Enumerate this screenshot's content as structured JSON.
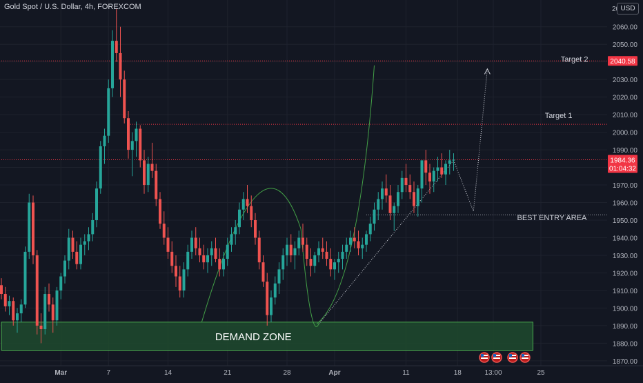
{
  "header": {
    "title": "Gold Spot / U.S. Dollar, 4h, FOREXCOM",
    "currency": "USD"
  },
  "colors": {
    "background": "#131722",
    "up": "#26a69a",
    "down": "#ef5350",
    "grid": "#1e222d",
    "axis_text": "#b2b5be",
    "zone_fill": "#1f4a2e",
    "zone_border": "#4caf50",
    "curve": "#43a047",
    "level_line": "#f23645",
    "price_label_bg": "#f23645"
  },
  "chart_data": {
    "type": "candlestick",
    "instrument": "Gold Spot / U.S. Dollar",
    "timeframe": "4h",
    "source": "FOREXCOM",
    "ylim": [
      1868,
      2070
    ],
    "y_ticks": [
      1870,
      1880,
      1890,
      1900,
      1910,
      1920,
      1930,
      1940,
      1950,
      1960,
      1970,
      1980,
      1990,
      2000,
      2010,
      2020,
      2030,
      2040,
      2050,
      2060
    ],
    "x_ticks": [
      {
        "label": "Mar",
        "bar": 15
      },
      {
        "label": "7",
        "bar": 27
      },
      {
        "label": "14",
        "bar": 42
      },
      {
        "label": "21",
        "bar": 57
      },
      {
        "label": "28",
        "bar": 72
      },
      {
        "label": "Apr",
        "bar": 84
      },
      {
        "label": "11",
        "bar": 102
      },
      {
        "label": "18",
        "bar": 115
      },
      {
        "label": "13:00",
        "bar": 124
      },
      {
        "label": "25",
        "bar": 136
      }
    ],
    "bar_count": 153,
    "candles_ohlc": [
      [
        1913,
        1917,
        1905,
        1908
      ],
      [
        1908,
        1912,
        1898,
        1901
      ],
      [
        1901,
        1907,
        1896,
        1904
      ],
      [
        1904,
        1906,
        1890,
        1893
      ],
      [
        1893,
        1900,
        1886,
        1897
      ],
      [
        1897,
        1905,
        1892,
        1902
      ],
      [
        1902,
        1935,
        1900,
        1932
      ],
      [
        1932,
        1965,
        1928,
        1960
      ],
      [
        1960,
        1964,
        1925,
        1930
      ],
      [
        1930,
        1933,
        1885,
        1890
      ],
      [
        1890,
        1897,
        1880,
        1888
      ],
      [
        1888,
        1912,
        1885,
        1908
      ],
      [
        1908,
        1914,
        1898,
        1902
      ],
      [
        1902,
        1906,
        1886,
        1893
      ],
      [
        1893,
        1912,
        1890,
        1910
      ],
      [
        1910,
        1920,
        1905,
        1918
      ],
      [
        1918,
        1930,
        1914,
        1927
      ],
      [
        1927,
        1945,
        1922,
        1940
      ],
      [
        1940,
        1944,
        1928,
        1932
      ],
      [
        1932,
        1938,
        1922,
        1925
      ],
      [
        1925,
        1940,
        1922,
        1936
      ],
      [
        1936,
        1942,
        1930,
        1938
      ],
      [
        1938,
        1946,
        1933,
        1942
      ],
      [
        1942,
        1954,
        1938,
        1950
      ],
      [
        1950,
        1972,
        1946,
        1968
      ],
      [
        1968,
        1995,
        1965,
        1992
      ],
      [
        1992,
        2002,
        1982,
        1998
      ],
      [
        1998,
        2030,
        1994,
        2025
      ],
      [
        2025,
        2058,
        2020,
        2052
      ],
      [
        2052,
        2070,
        2040,
        2045
      ],
      [
        2045,
        2060,
        2020,
        2030
      ],
      [
        2030,
        2035,
        2005,
        2008
      ],
      [
        2008,
        2012,
        1985,
        1990
      ],
      [
        1990,
        2000,
        1975,
        1995
      ],
      [
        1995,
        2006,
        1986,
        2002
      ],
      [
        2002,
        2004,
        1980,
        1984
      ],
      [
        1984,
        1990,
        1965,
        1970
      ],
      [
        1970,
        1986,
        1966,
        1982
      ],
      [
        1982,
        1994,
        1974,
        1978
      ],
      [
        1978,
        1982,
        1958,
        1962
      ],
      [
        1962,
        1966,
        1945,
        1948
      ],
      [
        1948,
        1955,
        1936,
        1940
      ],
      [
        1940,
        1946,
        1928,
        1932
      ],
      [
        1932,
        1938,
        1920,
        1924
      ],
      [
        1924,
        1930,
        1912,
        1918
      ],
      [
        1918,
        1924,
        1906,
        1910
      ],
      [
        1910,
        1926,
        1906,
        1922
      ],
      [
        1922,
        1936,
        1918,
        1932
      ],
      [
        1932,
        1944,
        1928,
        1940
      ],
      [
        1940,
        1946,
        1930,
        1934
      ],
      [
        1934,
        1940,
        1926,
        1930
      ],
      [
        1930,
        1936,
        1922,
        1926
      ],
      [
        1926,
        1934,
        1920,
        1930
      ],
      [
        1930,
        1938,
        1924,
        1934
      ],
      [
        1934,
        1940,
        1926,
        1928
      ],
      [
        1928,
        1934,
        1918,
        1922
      ],
      [
        1922,
        1932,
        1918,
        1928
      ],
      [
        1928,
        1940,
        1924,
        1936
      ],
      [
        1936,
        1946,
        1932,
        1942
      ],
      [
        1942,
        1950,
        1936,
        1946
      ],
      [
        1946,
        1960,
        1942,
        1956
      ],
      [
        1956,
        1966,
        1950,
        1962
      ],
      [
        1962,
        1970,
        1954,
        1958
      ],
      [
        1958,
        1964,
        1946,
        1950
      ],
      [
        1950,
        1954,
        1936,
        1940
      ],
      [
        1940,
        1944,
        1922,
        1926
      ],
      [
        1926,
        1930,
        1912,
        1915
      ],
      [
        1915,
        1920,
        1890,
        1896
      ],
      [
        1896,
        1910,
        1892,
        1906
      ],
      [
        1906,
        1918,
        1902,
        1914
      ],
      [
        1914,
        1926,
        1908,
        1922
      ],
      [
        1922,
        1934,
        1916,
        1930
      ],
      [
        1930,
        1940,
        1924,
        1936
      ],
      [
        1936,
        1942,
        1926,
        1930
      ],
      [
        1930,
        1938,
        1922,
        1934
      ],
      [
        1934,
        1944,
        1930,
        1940
      ],
      [
        1940,
        1948,
        1932,
        1936
      ],
      [
        1936,
        1940,
        1924,
        1928
      ],
      [
        1928,
        1934,
        1918,
        1924
      ],
      [
        1924,
        1932,
        1920,
        1930
      ],
      [
        1930,
        1938,
        1926,
        1934
      ],
      [
        1934,
        1940,
        1928,
        1932
      ],
      [
        1932,
        1938,
        1924,
        1928
      ],
      [
        1928,
        1934,
        1918,
        1922
      ],
      [
        1922,
        1928,
        1916,
        1926
      ],
      [
        1926,
        1932,
        1920,
        1928
      ],
      [
        1928,
        1936,
        1922,
        1932
      ],
      [
        1932,
        1940,
        1928,
        1936
      ],
      [
        1936,
        1944,
        1932,
        1940
      ],
      [
        1940,
        1946,
        1934,
        1938
      ],
      [
        1938,
        1944,
        1930,
        1934
      ],
      [
        1934,
        1940,
        1928,
        1936
      ],
      [
        1936,
        1944,
        1932,
        1942
      ],
      [
        1942,
        1952,
        1938,
        1948
      ],
      [
        1948,
        1960,
        1944,
        1956
      ],
      [
        1956,
        1966,
        1950,
        1962
      ],
      [
        1962,
        1972,
        1956,
        1968
      ],
      [
        1968,
        1976,
        1960,
        1964
      ],
      [
        1964,
        1970,
        1950,
        1954
      ],
      [
        1954,
        1960,
        1944,
        1958
      ],
      [
        1958,
        1970,
        1954,
        1966
      ],
      [
        1966,
        1978,
        1962,
        1974
      ],
      [
        1974,
        1982,
        1966,
        1970
      ],
      [
        1970,
        1976,
        1962,
        1966
      ],
      [
        1966,
        1972,
        1954,
        1958
      ],
      [
        1958,
        1970,
        1952,
        1968
      ],
      [
        1968,
        1984,
        1960,
        1984
      ],
      [
        1984,
        1990,
        1970,
        1977
      ],
      [
        1977,
        1982,
        1965,
        1972
      ],
      [
        1972,
        1980,
        1966,
        1978
      ],
      [
        1978,
        1986,
        1972,
        1980
      ],
      [
        1980,
        1988,
        1974,
        1976
      ],
      [
        1976,
        1984,
        1970,
        1982
      ],
      [
        1982,
        1990,
        1976,
        1984
      ],
      [
        1984,
        1988,
        1978,
        1984.36
      ]
    ],
    "levels": [
      {
        "name": "target-2-line",
        "value": 2040.58,
        "x_start_bar": 0,
        "style": "dotted"
      },
      {
        "name": "target-1-line",
        "value": 2004.5,
        "x_start_bar": 32,
        "style": "dotted"
      },
      {
        "name": "current-price-line",
        "value": 1984.36,
        "x_start_bar": 0,
        "style": "dotted"
      },
      {
        "name": "best-entry-line",
        "value": 1953,
        "x_start_bar": 92,
        "style": "dotted"
      }
    ],
    "demand_zone": {
      "label": "DEMAND ZONE",
      "top": 1892,
      "bottom": 1876,
      "x_start_bar": 0,
      "x_end_bar": 134
    },
    "annotations": [
      {
        "name": "target-2-label",
        "text": "Target 2",
        "price": 2040,
        "bar": 141
      },
      {
        "name": "target-1-label",
        "text": "Target 1",
        "price": 2008,
        "bar": 137
      },
      {
        "name": "best-entry-label",
        "text": "BEST ENTRY AREA",
        "price": 1950,
        "bar": 130
      }
    ],
    "price_labels": [
      {
        "name": "target-2-price-tag",
        "value": "2040.58"
      },
      {
        "name": "current-price-tag",
        "value": "1984.36",
        "countdown": "01:04:32"
      }
    ],
    "partial_top_tick": "20"
  }
}
